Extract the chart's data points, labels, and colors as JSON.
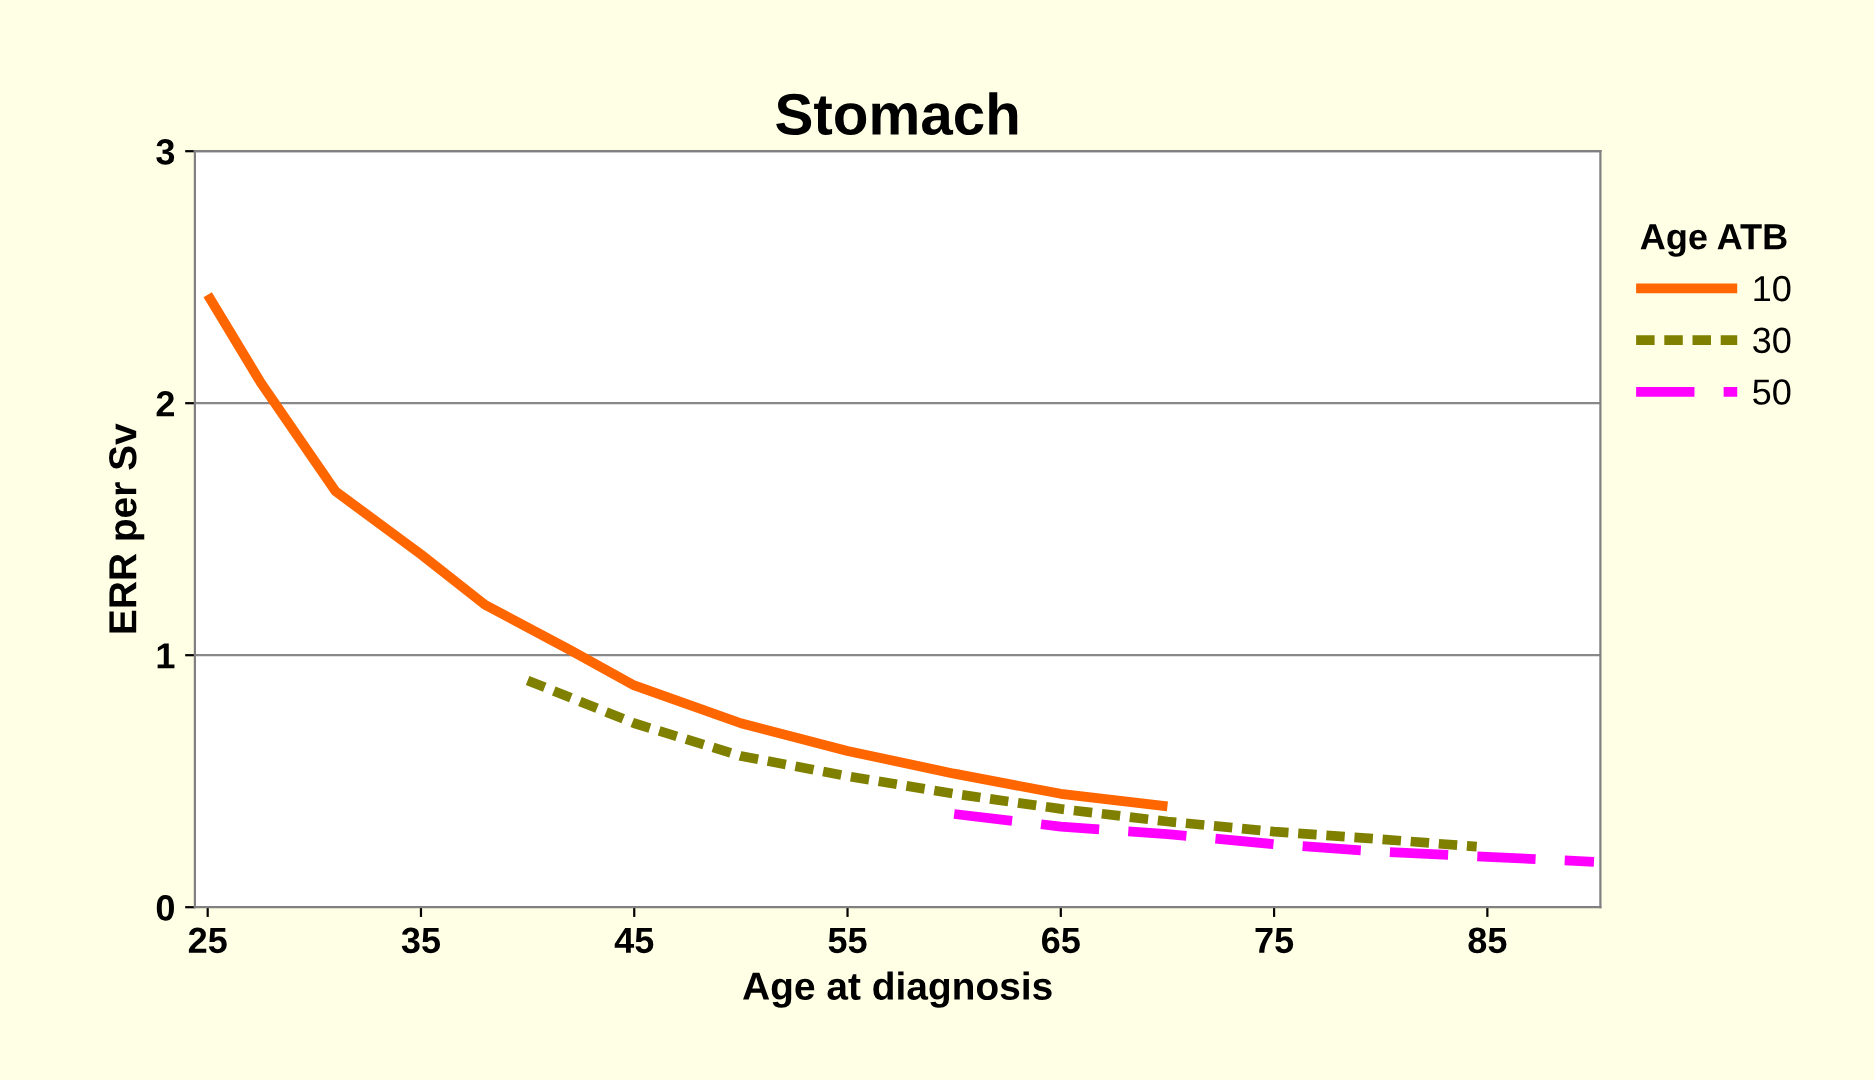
{
  "chart_data": {
    "type": "line",
    "title": "Stomach",
    "xlabel": "Age at diagnosis",
    "ylabel": "ERR per Sv",
    "legend_title": "Age ATB",
    "xlim": [
      24.4,
      90.3
    ],
    "xticks": [
      25,
      35,
      45,
      55,
      65,
      75,
      85
    ],
    "ylim": [
      0,
      3
    ],
    "yticks": [
      0,
      1,
      2,
      3
    ],
    "grid": "y",
    "legend": "right",
    "marker": "none",
    "series": [
      {
        "name": "10",
        "color": "#ff6600",
        "line_style": "solid",
        "x": [
          25,
          27.5,
          31,
          35,
          38,
          42,
          45,
          50,
          55,
          60,
          65,
          70
        ],
        "values": [
          2.43,
          2.08,
          1.65,
          1.4,
          1.2,
          1.02,
          0.88,
          0.73,
          0.62,
          0.53,
          0.45,
          0.4
        ]
      },
      {
        "name": "30",
        "color": "#808000",
        "line_style": "dotted",
        "x": [
          40,
          45,
          50,
          55,
          60,
          65,
          70,
          75,
          80,
          84.5
        ],
        "values": [
          0.9,
          0.73,
          0.6,
          0.52,
          0.45,
          0.39,
          0.34,
          0.3,
          0.27,
          0.24
        ]
      },
      {
        "name": "50",
        "color": "#ff00ff",
        "line_style": "dashed",
        "x": [
          60,
          65,
          70,
          75,
          80,
          85,
          90
        ],
        "values": [
          0.37,
          0.32,
          0.29,
          0.25,
          0.22,
          0.2,
          0.18
        ]
      }
    ]
  }
}
